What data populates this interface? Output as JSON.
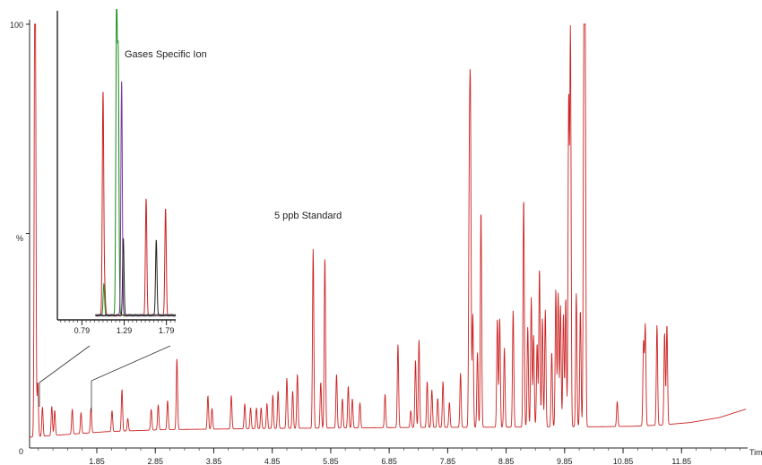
{
  "chart_data": [
    {
      "type": "line",
      "title": "",
      "annotation": "5 ppb Standard",
      "xlabel": "Tim",
      "ylabel": "%",
      "y_tick_labels": [
        "0",
        "100"
      ],
      "x_ticks": [
        1.85,
        2.85,
        3.85,
        4.85,
        5.85,
        6.85,
        7.85,
        8.85,
        9.85,
        10.85,
        11.85
      ],
      "x_tick_labels": [
        "1.85",
        "2.85",
        "3.85",
        "4.85",
        "5.85",
        "6.85",
        "7.85",
        "8.85",
        "9.85",
        "10.85",
        "11.85"
      ],
      "xlim": [
        0.7,
        12.95
      ],
      "ylim": [
        0,
        100
      ],
      "grid": false,
      "color": "#cc2222",
      "baseline": {
        "x": [
          0.7,
          2.0,
          3.0,
          5.0,
          7.0,
          9.0,
          10.5,
          11.0,
          11.5,
          12.0,
          12.5,
          12.95
        ],
        "y": [
          1.3,
          2.6,
          3.1,
          3.4,
          3.6,
          3.7,
          3.8,
          3.9,
          4.2,
          4.8,
          6.0,
          8.0
        ]
      },
      "peaks": [
        {
          "x": 0.79,
          "y": 99
        },
        {
          "x": 0.8,
          "y": 61
        },
        {
          "x": 0.84,
          "y": 15
        },
        {
          "x": 0.92,
          "y": 9
        },
        {
          "x": 1.08,
          "y": 9
        },
        {
          "x": 1.13,
          "y": 8
        },
        {
          "x": 1.43,
          "y": 8
        },
        {
          "x": 1.58,
          "y": 7
        },
        {
          "x": 1.75,
          "y": 8
        },
        {
          "x": 2.11,
          "y": 7
        },
        {
          "x": 2.28,
          "y": 12
        },
        {
          "x": 2.38,
          "y": 5
        },
        {
          "x": 2.78,
          "y": 7
        },
        {
          "x": 2.9,
          "y": 8
        },
        {
          "x": 3.06,
          "y": 9
        },
        {
          "x": 3.22,
          "y": 19
        },
        {
          "x": 3.75,
          "y": 10
        },
        {
          "x": 3.82,
          "y": 7
        },
        {
          "x": 4.15,
          "y": 10
        },
        {
          "x": 4.38,
          "y": 8
        },
        {
          "x": 4.48,
          "y": 7
        },
        {
          "x": 4.58,
          "y": 7
        },
        {
          "x": 4.66,
          "y": 7
        },
        {
          "x": 4.76,
          "y": 8
        },
        {
          "x": 4.86,
          "y": 10
        },
        {
          "x": 4.95,
          "y": 11
        },
        {
          "x": 5.1,
          "y": 14
        },
        {
          "x": 5.2,
          "y": 11
        },
        {
          "x": 5.28,
          "y": 15
        },
        {
          "x": 5.55,
          "y": 45
        },
        {
          "x": 5.68,
          "y": 13
        },
        {
          "x": 5.75,
          "y": 43
        },
        {
          "x": 5.95,
          "y": 15
        },
        {
          "x": 6.05,
          "y": 9
        },
        {
          "x": 6.15,
          "y": 12
        },
        {
          "x": 6.22,
          "y": 9
        },
        {
          "x": 6.35,
          "y": 8
        },
        {
          "x": 6.78,
          "y": 10
        },
        {
          "x": 7.0,
          "y": 22
        },
        {
          "x": 7.22,
          "y": 6
        },
        {
          "x": 7.3,
          "y": 18
        },
        {
          "x": 7.36,
          "y": 23
        },
        {
          "x": 7.5,
          "y": 13
        },
        {
          "x": 7.58,
          "y": 11
        },
        {
          "x": 7.68,
          "y": 9
        },
        {
          "x": 7.77,
          "y": 13
        },
        {
          "x": 7.88,
          "y": 8
        },
        {
          "x": 8.07,
          "y": 15
        },
        {
          "x": 8.22,
          "y": 57
        },
        {
          "x": 8.24,
          "y": 73
        },
        {
          "x": 8.28,
          "y": 29
        },
        {
          "x": 8.36,
          "y": 20
        },
        {
          "x": 8.42,
          "y": 54
        },
        {
          "x": 8.7,
          "y": 28
        },
        {
          "x": 8.74,
          "y": 28
        },
        {
          "x": 8.82,
          "y": 21
        },
        {
          "x": 8.97,
          "y": 30
        },
        {
          "x": 9.15,
          "y": 57
        },
        {
          "x": 9.22,
          "y": 26
        },
        {
          "x": 9.28,
          "y": 33
        },
        {
          "x": 9.32,
          "y": 24
        },
        {
          "x": 9.38,
          "y": 22
        },
        {
          "x": 9.42,
          "y": 40
        },
        {
          "x": 9.47,
          "y": 28
        },
        {
          "x": 9.52,
          "y": 30
        },
        {
          "x": 9.63,
          "y": 20
        },
        {
          "x": 9.7,
          "y": 35
        },
        {
          "x": 9.74,
          "y": 34
        },
        {
          "x": 9.78,
          "y": 31
        },
        {
          "x": 9.83,
          "y": 29
        },
        {
          "x": 9.87,
          "y": 33
        },
        {
          "x": 9.92,
          "y": 80
        },
        {
          "x": 9.95,
          "y": 96
        },
        {
          "x": 10.05,
          "y": 34
        },
        {
          "x": 10.12,
          "y": 30
        },
        {
          "x": 10.18,
          "y": 86
        },
        {
          "x": 10.2,
          "y": 100
        },
        {
          "x": 10.75,
          "y": 8
        },
        {
          "x": 11.2,
          "y": 22
        },
        {
          "x": 11.23,
          "y": 26
        },
        {
          "x": 11.43,
          "y": 26
        },
        {
          "x": 11.56,
          "y": 24
        },
        {
          "x": 11.6,
          "y": 26
        }
      ]
    },
    {
      "type": "line",
      "title": "Gases Specific Ion",
      "x_ticks": [
        0.79,
        1.29,
        1.79
      ],
      "x_tick_labels": [
        "0.79",
        "1.29",
        "1.79"
      ],
      "xlim": [
        0.5,
        1.9
      ],
      "ylim": [
        0,
        100
      ],
      "zoom_range": [
        0.79,
        1.95
      ],
      "grid": false,
      "series": [
        {
          "color": "#cc2222",
          "peaks": [
            {
              "x": 1.04,
              "y": 73
            },
            {
              "x": 1.06,
              "y": 8
            },
            {
              "x": 1.55,
              "y": 38
            },
            {
              "x": 1.78,
              "y": 35
            }
          ]
        },
        {
          "color": "#1a8a1a",
          "peaks": [
            {
              "x": 1.05,
              "y": 10
            },
            {
              "x": 1.2,
              "y": 100
            },
            {
              "x": 1.22,
              "y": 82
            }
          ]
        },
        {
          "color": "#7a3aa0",
          "peaks": [
            {
              "x": 1.26,
              "y": 77
            }
          ]
        },
        {
          "color": "#222222",
          "peaks": [
            {
              "x": 1.28,
              "y": 25
            },
            {
              "x": 1.67,
              "y": 25
            }
          ]
        }
      ]
    }
  ]
}
